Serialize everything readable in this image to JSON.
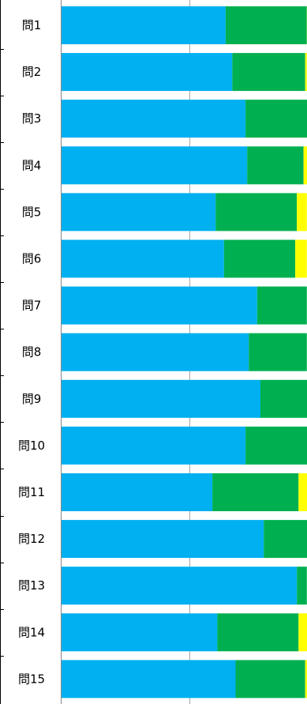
{
  "chart_data": {
    "type": "bar",
    "orientation": "horizontal",
    "stacked": true,
    "categories": [
      "問1",
      "問2",
      "問3",
      "問4",
      "問5",
      "問6",
      "問7",
      "問8",
      "問9",
      "問10",
      "問11",
      "問12",
      "問13",
      "問14",
      "問15"
    ],
    "series": [
      {
        "color": "#00b0f0",
        "values": [
          49.5,
          51.5,
          55.5,
          56.0,
          46.5,
          49.0,
          59.0,
          56.5,
          60.0,
          55.5,
          45.5,
          61.0,
          71.0,
          47.0,
          52.5
        ]
      },
      {
        "color": "#00b050",
        "values": [
          24.5,
          22.0,
          19.0,
          17.0,
          24.5,
          21.5,
          15.0,
          17.5,
          14.5,
          19.0,
          26.0,
          13.5,
          3.0,
          24.5,
          21.0
        ]
      },
      {
        "color": "#ffff00",
        "values": [
          0.5,
          0.5,
          0.0,
          1.5,
          3.0,
          3.5,
          0.0,
          0.0,
          0.0,
          0.0,
          3.0,
          0.0,
          0.0,
          3.0,
          1.0
        ]
      }
    ],
    "xlim": [
      0,
      74.5
    ],
    "grid": true,
    "gridline_values": [
      38.5
    ],
    "legend": "none",
    "colors": {
      "axis": "#878787",
      "gridline": "#a6a6a6",
      "separator": "#000000",
      "background": "#ffffff"
    }
  }
}
